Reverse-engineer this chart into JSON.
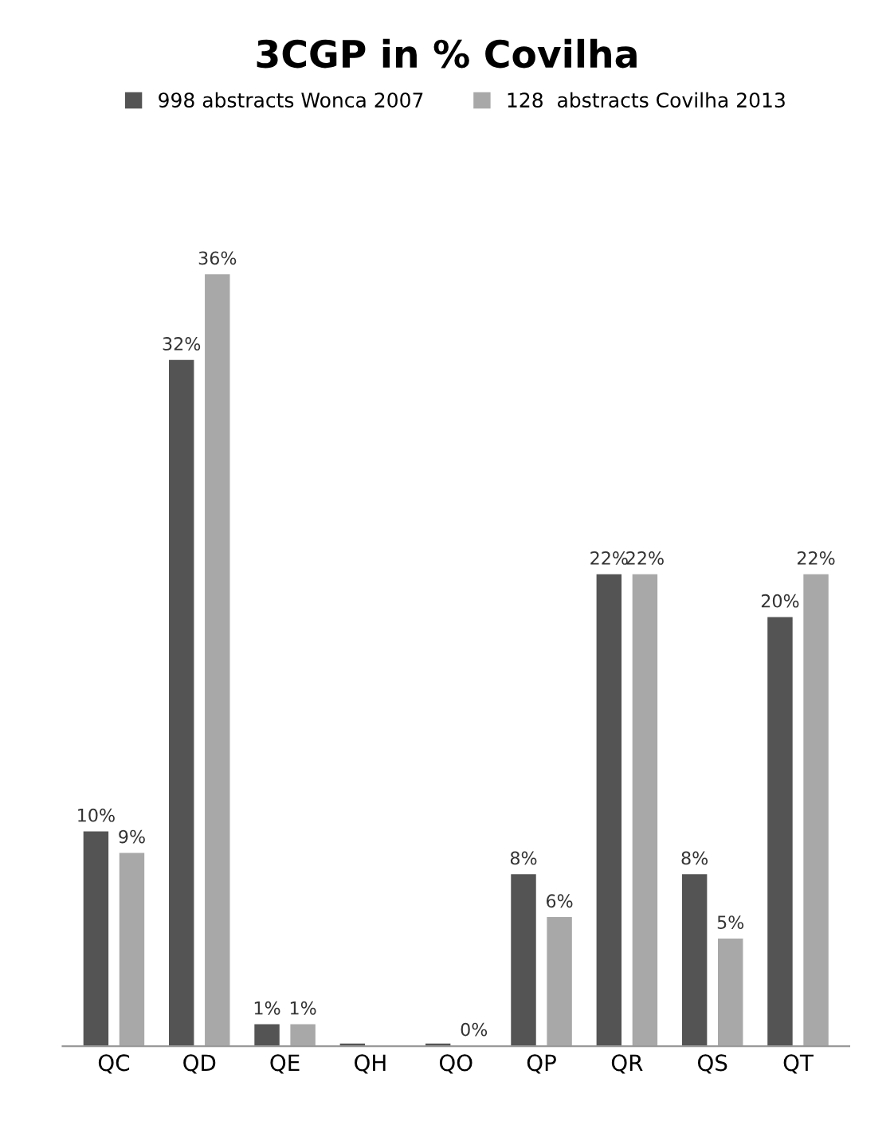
{
  "chart_data": {
    "type": "bar",
    "title": "3CGP in % Covilha",
    "categories": [
      "QC",
      "QD",
      "QE",
      "QH",
      "QO",
      "QP",
      "QR",
      "QS",
      "QT"
    ],
    "series": [
      {
        "name": "998 abstracts Wonca 2007",
        "color": "#545454",
        "values": [
          10,
          32,
          1,
          0.1,
          0.1,
          8,
          22,
          8,
          20
        ],
        "value_labels": [
          "10%",
          "32%",
          "1%",
          null,
          null,
          "8%",
          "22%",
          "8%",
          "20%"
        ]
      },
      {
        "name": "128  abstracts Covilha 2013",
        "color": "#a8a8a8",
        "values": [
          9,
          36,
          1,
          0,
          0,
          6,
          22,
          5,
          22
        ],
        "value_labels": [
          "9%",
          "36%",
          "1%",
          null,
          "0%",
          "6%",
          "22%",
          "5%",
          "22%"
        ]
      }
    ],
    "legend": "top",
    "grid": false,
    "tick_labels": "x"
  }
}
